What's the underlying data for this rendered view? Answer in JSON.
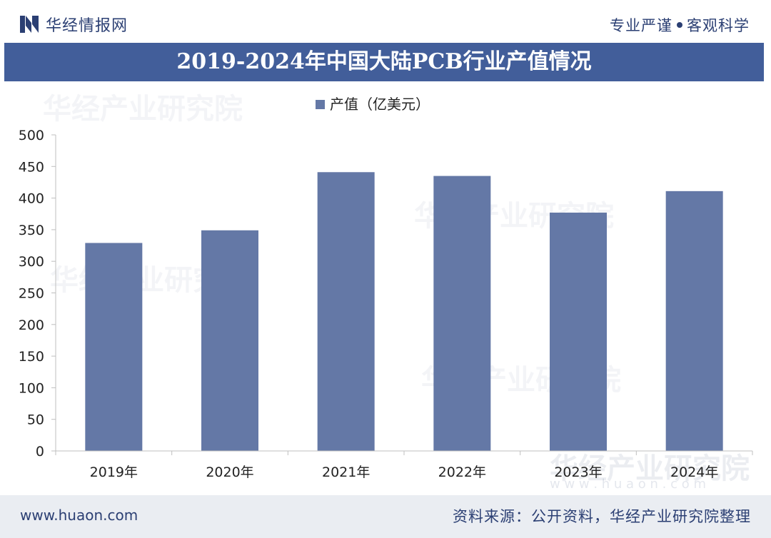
{
  "header": {
    "brand": "华经情报网",
    "slogan_left": "专业严谨",
    "slogan_right": "客观科学"
  },
  "footer": {
    "website": "www.huaon.com",
    "source": "资料来源：公开资料，华经产业研究院整理"
  },
  "watermark": {
    "text": "华经产业研究院",
    "domain": "w w w . h u a o n . c o m"
  },
  "colors": {
    "bar": "#6478a6",
    "title_band": "#425e9a",
    "text": "#2b3f73"
  },
  "chart_data": {
    "type": "bar",
    "title": "2019-2024年中国大陆PCB行业产值情况",
    "categories": [
      "2019年",
      "2020年",
      "2021年",
      "2022年",
      "2023年",
      "2024年"
    ],
    "series": [
      {
        "name": "产值（亿美元）",
        "values": [
          329,
          349,
          441,
          435,
          377,
          411
        ]
      }
    ],
    "xlabel": "",
    "ylabel": "",
    "ylim": [
      0,
      500
    ],
    "yticks": [
      0,
      50,
      100,
      150,
      200,
      250,
      300,
      350,
      400,
      450,
      500
    ],
    "grid": false,
    "legend": "top-center"
  }
}
